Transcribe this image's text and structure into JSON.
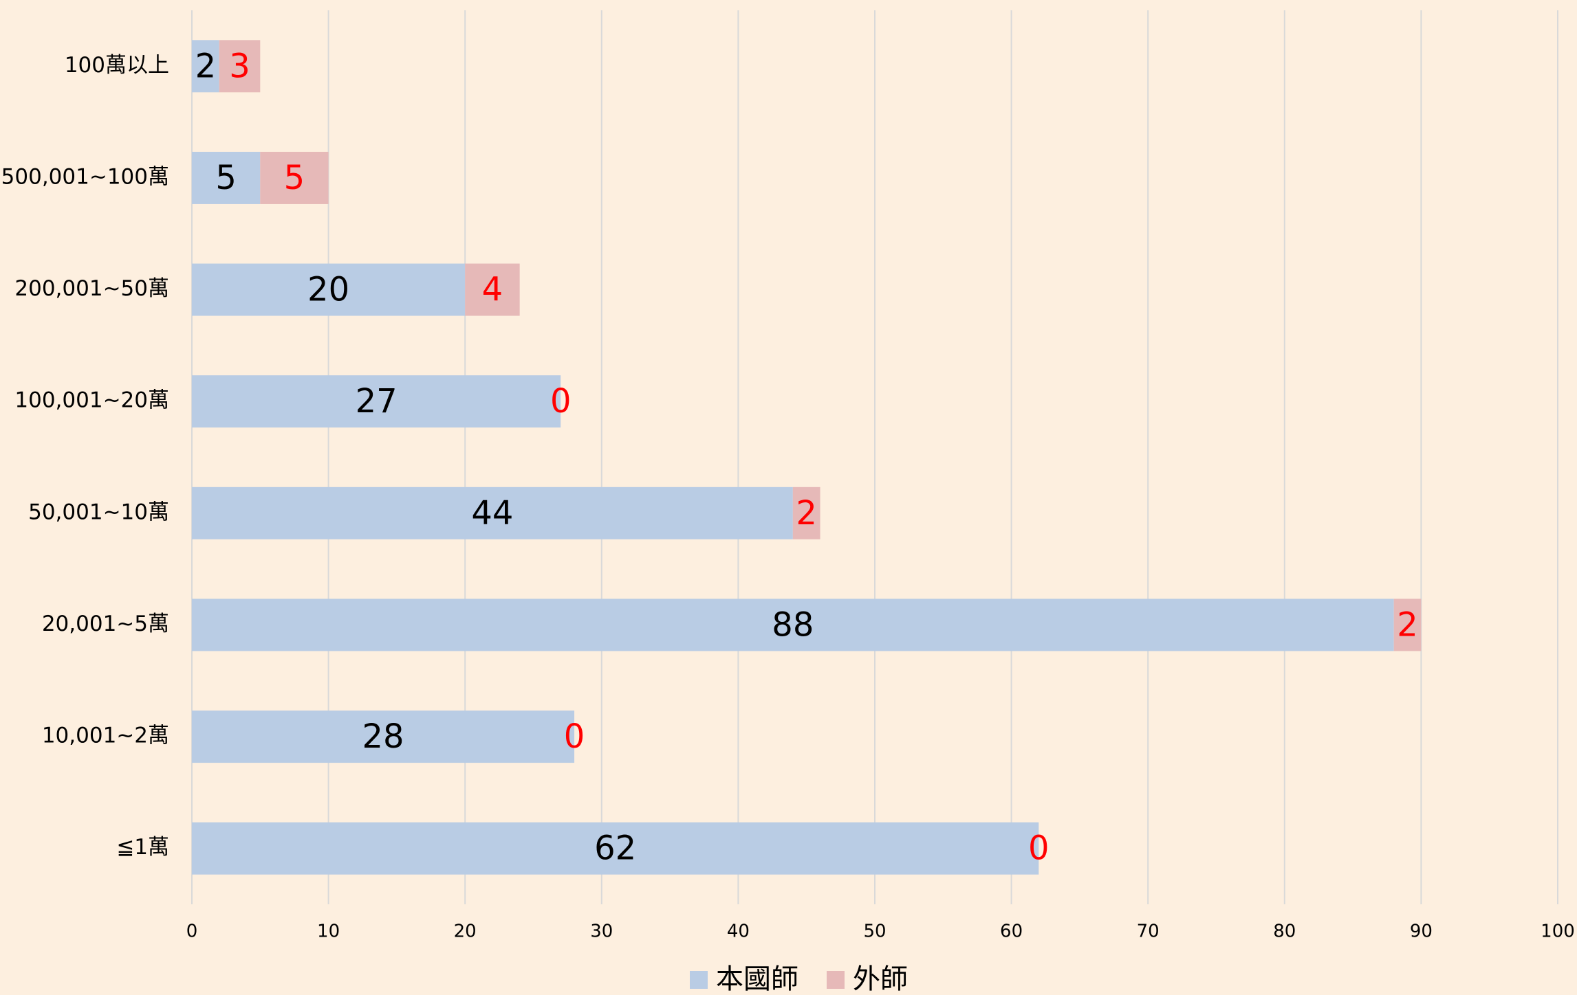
{
  "chart_data": {
    "type": "stacked_bar_horizontal",
    "categories": [
      "100萬以上",
      "500,001~100萬",
      "200,001~50萬",
      "100,001~20萬",
      "50,001~10萬",
      "20,001~5萬",
      "10,001~2萬",
      "≦1萬"
    ],
    "series": [
      {
        "name": "本國師",
        "color": "#b9cce4",
        "label_color": "#000000",
        "values": [
          2,
          5,
          20,
          27,
          44,
          88,
          28,
          62
        ]
      },
      {
        "name": "外師",
        "color": "#e6b9b8",
        "label_color": "#ff0000",
        "values": [
          3,
          5,
          4,
          0,
          2,
          2,
          0,
          0
        ]
      }
    ],
    "xlim": [
      0,
      100
    ],
    "xticks": [
      0,
      10,
      20,
      30,
      40,
      50,
      60,
      70,
      80,
      90,
      100
    ],
    "grid": true,
    "legend": "bottom"
  }
}
